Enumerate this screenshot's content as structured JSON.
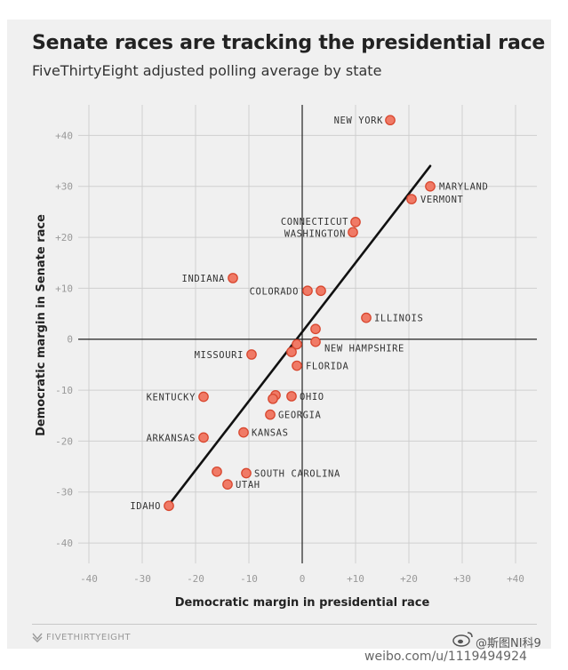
{
  "title": "Senate races are tracking the presidential race",
  "subtitle": "FiveThirtyEight adjusted polling average by state",
  "brand": "FIVETHIRTYEIGHT",
  "watermark": {
    "handle": "@斯图NI科9",
    "url": "weibo.com/u/1119494924"
  },
  "colors": {
    "point_fill": "#f07a66",
    "point_stroke": "#d8472f",
    "trend": "#111111",
    "grid": "#cfcfcf",
    "axis": "#222222"
  },
  "chart_data": {
    "type": "scatter",
    "title": "Senate races are tracking the presidential race",
    "subtitle": "FiveThirtyEight adjusted polling average by state",
    "xlabel": "Democratic margin in presidential race",
    "ylabel": "Democratic margin in Senate race",
    "xlim": [
      -42,
      44
    ],
    "ylim": [
      -44,
      46
    ],
    "xticks": [
      -40,
      -30,
      -20,
      -10,
      0,
      10,
      20,
      30,
      40
    ],
    "xtick_labels": [
      "-40",
      "-30",
      "-20",
      "-10",
      "0",
      "+10",
      "+20",
      "+30",
      "+40"
    ],
    "yticks": [
      -40,
      -30,
      -20,
      -10,
      0,
      10,
      20,
      30,
      40
    ],
    "ytick_labels": [
      "-40",
      "-30",
      "-20",
      "-10",
      "0",
      "+10",
      "+20",
      "+30",
      "+40"
    ],
    "grid": true,
    "trend_line": {
      "x": [
        -25,
        24
      ],
      "y": [
        -32.5,
        34
      ]
    },
    "points": [
      {
        "x": 16.5,
        "y": 43,
        "label": "NEW YORK"
      },
      {
        "x": 24,
        "y": 30,
        "label": "MARYLAND"
      },
      {
        "x": 20.5,
        "y": 27.5,
        "label": "VERMONT"
      },
      {
        "x": 10,
        "y": 23,
        "label": "CONNECTICUT"
      },
      {
        "x": 9.5,
        "y": 21,
        "label": "WASHINGTON"
      },
      {
        "x": -13,
        "y": 12,
        "label": "INDIANA"
      },
      {
        "x": 1,
        "y": 9.5,
        "label": "COLORADO"
      },
      {
        "x": 3.5,
        "y": 9.5,
        "label": ""
      },
      {
        "x": 12,
        "y": 4.2,
        "label": "ILLINOIS"
      },
      {
        "x": 2.5,
        "y": 2,
        "label": ""
      },
      {
        "x": -1,
        "y": -1,
        "label": ""
      },
      {
        "x": -2,
        "y": -2.5,
        "label": ""
      },
      {
        "x": 2.5,
        "y": -0.5,
        "label": "NEW HAMPSHIRE"
      },
      {
        "x": -9.5,
        "y": -3,
        "label": "MISSOURI"
      },
      {
        "x": -1,
        "y": -5.2,
        "label": "FLORIDA"
      },
      {
        "x": -18.5,
        "y": -11.3,
        "label": "KENTUCKY"
      },
      {
        "x": -5,
        "y": -11,
        "label": ""
      },
      {
        "x": -5.5,
        "y": -11.7,
        "label": ""
      },
      {
        "x": -2,
        "y": -11.2,
        "label": "OHIO"
      },
      {
        "x": -6,
        "y": -14.8,
        "label": "GEORGIA"
      },
      {
        "x": -11,
        "y": -18.3,
        "label": "KANSAS"
      },
      {
        "x": -18.5,
        "y": -19.3,
        "label": "ARKANSAS"
      },
      {
        "x": -16,
        "y": -26,
        "label": ""
      },
      {
        "x": -10.5,
        "y": -26.3,
        "label": "SOUTH CAROLINA"
      },
      {
        "x": -14,
        "y": -28.5,
        "label": "UTAH"
      },
      {
        "x": -25,
        "y": -32.7,
        "label": "IDAHO"
      }
    ]
  }
}
